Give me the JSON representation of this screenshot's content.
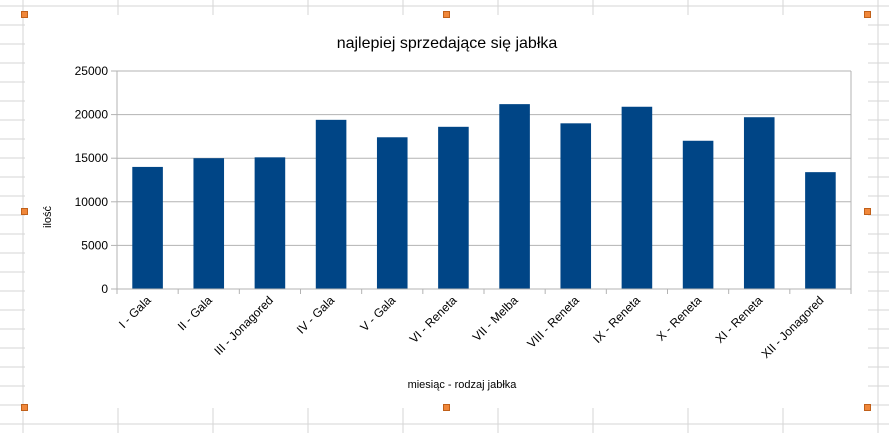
{
  "chart_data": {
    "type": "bar",
    "title": "najlepiej sprzedające się jabłka",
    "xlabel": "miesiąc - rodzaj jabłka",
    "ylabel": "ilość",
    "categories": [
      "I - Gala",
      "II - Gala",
      "III - Jonagored",
      "IV - Gala",
      "V - Gala",
      "VI - Reneta",
      "VII - Melba",
      "VIII - Reneta",
      "IX - Reneta",
      "X - Reneta",
      "XI - Reneta",
      "XII - Jonagored"
    ],
    "values": [
      14000,
      15000,
      15100,
      19400,
      17400,
      18600,
      21200,
      19000,
      20900,
      17000,
      19700,
      13400
    ],
    "ylim": [
      0,
      25000
    ],
    "yticks": [
      0,
      5000,
      10000,
      15000,
      20000,
      25000
    ],
    "grid": true,
    "legend": "none",
    "bar_color": "#004586"
  }
}
